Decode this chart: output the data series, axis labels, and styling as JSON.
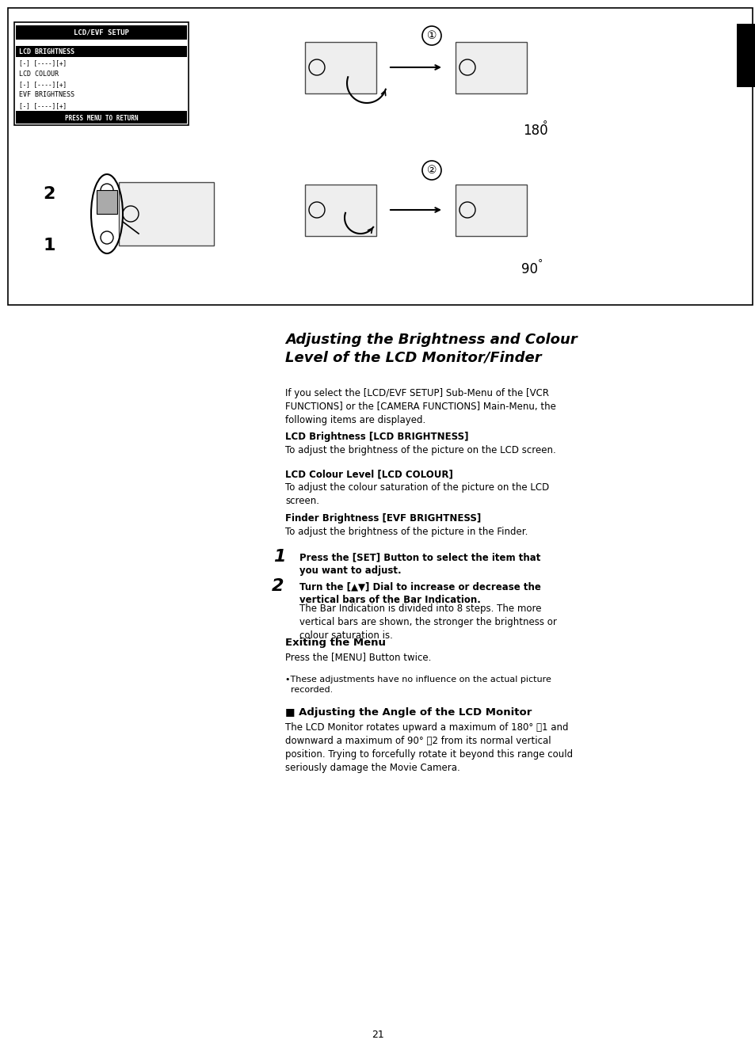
{
  "bg_color": "#ffffff",
  "page_number": "21",
  "title": "Adjusting the Brightness and Colour\nLevel of the LCD Monitor/Finder",
  "intro_text": "If you select the [LCD/EVF SETUP] Sub-Menu of the [VCR\nFUNCTIONS] or the [CAMERA FUNCTIONS] Main-Menu, the\nfollowing items are displayed.",
  "section1_bold": "LCD Brightness [LCD BRIGHTNESS]",
  "section1_text": "To adjust the brightness of the picture on the LCD screen.",
  "section2_bold": "LCD Colour Level [LCD COLOUR]",
  "section2_text": "To adjust the colour saturation of the picture on the LCD\nscreen.",
  "section3_bold": "Finder Brightness [EVF BRIGHTNESS]",
  "section3_text": "To adjust the brightness of the picture in the Finder.",
  "step1_num": "1",
  "step1_bold": "Press the [SET] Button to select the item that\nyou want to adjust.",
  "step2_num": "2",
  "step2_bold": "Turn the [▲▼] Dial to increase or decrease the\nvertical bars of the Bar Indication.",
  "step2_text": "The Bar Indication is divided into 8 steps. The more\nvertical bars are shown, the stronger the brightness or\ncolour saturation is.",
  "exit_bold": "Exiting the Menu",
  "exit_text": "Press the [MENU] Button twice.",
  "bullet_text": "•These adjustments have no influence on the actual picture\n  recorded.",
  "angle_heading": "■ Adjusting the Angle of the LCD Monitor",
  "angle_text": "The LCD Monitor rotates upward a maximum of 180° ␱1 and\ndownward a maximum of 90° ␱2 from its normal vertical\nposition. Trying to forcefully rotate it beyond this range could\nseriously damage the Movie Camera.",
  "menu_title": "LCD/EVF SETUP",
  "menu_item1_hl": "LCD BRIGHTNESS",
  "menu_item1_sub": "[-] [----][+]",
  "menu_item2": "LCD COLOUR",
  "menu_item2_sub": "[-] [----][+]",
  "menu_item3": "EVF BRIGHTNESS",
  "menu_item3_sub": "[-] [----][+]",
  "menu_bottom": "PRESS MENU TO RETURN",
  "label_180": "180",
  "label_90": "90",
  "label_circle1": "1",
  "label_circle2": "2"
}
